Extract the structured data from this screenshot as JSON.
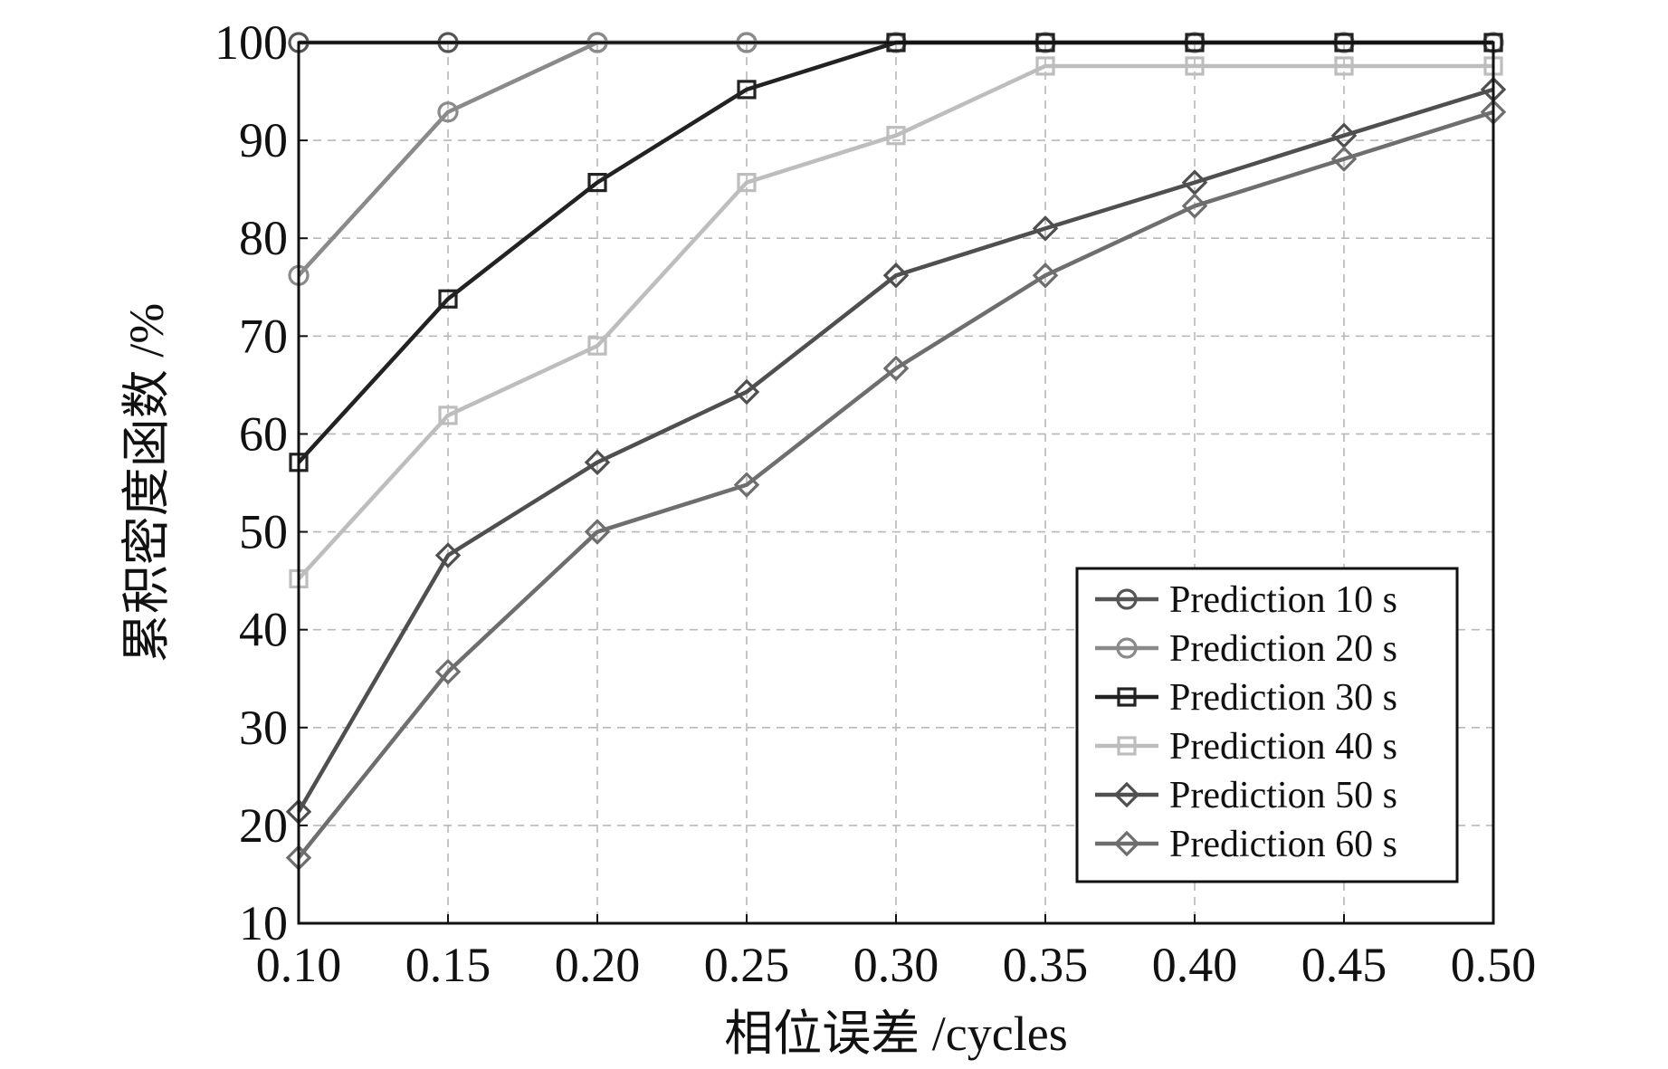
{
  "chart_data": {
    "type": "line",
    "xlabel": "相位误差 /cycles",
    "ylabel": "累积密度函数 /%",
    "xlim": [
      0.1,
      0.5
    ],
    "ylim": [
      10,
      100
    ],
    "grid": true,
    "legend_position": "bottom-right",
    "x": [
      0.1,
      0.15,
      0.2,
      0.25,
      0.3,
      0.35,
      0.4,
      0.45,
      0.5
    ],
    "x_tick_labels": [
      "0.10",
      "0.15",
      "0.20",
      "0.25",
      "0.30",
      "0.35",
      "0.40",
      "0.45",
      "0.50"
    ],
    "y_ticks": [
      10,
      20,
      30,
      40,
      50,
      60,
      70,
      80,
      90,
      100
    ],
    "y_tick_labels": [
      "10",
      "20",
      "30",
      "40",
      "50",
      "60",
      "70",
      "80",
      "90",
      "100"
    ],
    "series": [
      {
        "name": "Prediction 10 s",
        "marker": "circle",
        "color": "#555555",
        "values": [
          100,
          100,
          100,
          100,
          100,
          100,
          100,
          100,
          100
        ]
      },
      {
        "name": "Prediction 20 s",
        "marker": "circle",
        "color": "#8a8a8a",
        "values": [
          76.2,
          92.9,
          100,
          100,
          100,
          100,
          100,
          100,
          100
        ]
      },
      {
        "name": "Prediction 30 s",
        "marker": "square",
        "color": "#222222",
        "values": [
          57.1,
          73.8,
          85.7,
          95.2,
          100,
          100,
          100,
          100,
          100
        ]
      },
      {
        "name": "Prediction 40 s",
        "marker": "square",
        "color": "#bdbdbd",
        "values": [
          45.2,
          61.9,
          69.0,
          85.7,
          90.5,
          97.6,
          97.6,
          97.6,
          97.6
        ]
      },
      {
        "name": "Prediction 50 s",
        "marker": "diamond",
        "color": "#4f4f4f",
        "values": [
          21.4,
          47.6,
          57.1,
          64.3,
          76.2,
          81.0,
          85.7,
          90.5,
          95.2
        ]
      },
      {
        "name": "Prediction 60 s",
        "marker": "diamond",
        "color": "#6e6e6e",
        "values": [
          16.7,
          35.7,
          50.0,
          54.8,
          66.7,
          76.2,
          83.3,
          88.1,
          92.9
        ]
      }
    ]
  }
}
